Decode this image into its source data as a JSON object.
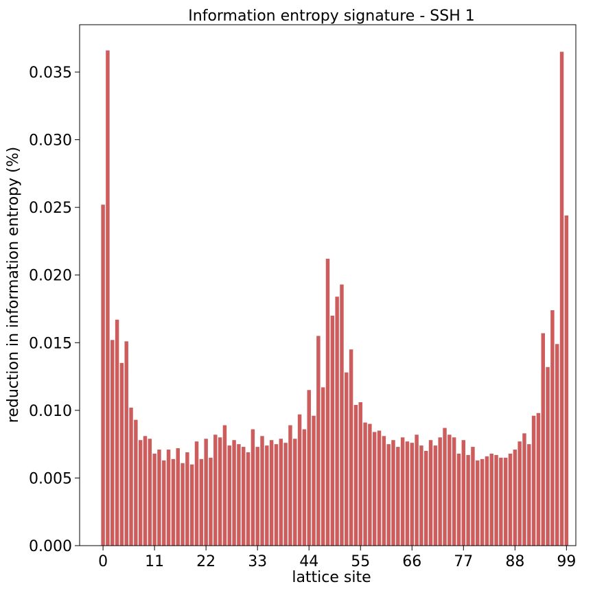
{
  "chart_data": {
    "type": "bar",
    "title": "Information entropy signature - SSH 1",
    "xlabel": "lattice site",
    "ylabel": "reduction in information entropy (%)",
    "bar_color": "#cd5c5c",
    "xlim": [
      -5,
      101
    ],
    "ylim": [
      0,
      0.0385
    ],
    "xticks": [
      0,
      11,
      22,
      33,
      44,
      55,
      66,
      77,
      88,
      99
    ],
    "xtick_labels": [
      "0",
      "11",
      "22",
      "33",
      "44",
      "55",
      "66",
      "77",
      "88",
      "99"
    ],
    "yticks": [
      0,
      0.005,
      0.01,
      0.015,
      0.02,
      0.025,
      0.03,
      0.035
    ],
    "ytick_labels": [
      "0.000",
      "0.005",
      "0.010",
      "0.015",
      "0.020",
      "0.025",
      "0.030",
      "0.035"
    ],
    "categories": [
      0,
      1,
      2,
      3,
      4,
      5,
      6,
      7,
      8,
      9,
      10,
      11,
      12,
      13,
      14,
      15,
      16,
      17,
      18,
      19,
      20,
      21,
      22,
      23,
      24,
      25,
      26,
      27,
      28,
      29,
      30,
      31,
      32,
      33,
      34,
      35,
      36,
      37,
      38,
      39,
      40,
      41,
      42,
      43,
      44,
      45,
      46,
      47,
      48,
      49,
      50,
      51,
      52,
      53,
      54,
      55,
      56,
      57,
      58,
      59,
      60,
      61,
      62,
      63,
      64,
      65,
      66,
      67,
      68,
      69,
      70,
      71,
      72,
      73,
      74,
      75,
      76,
      77,
      78,
      79,
      80,
      81,
      82,
      83,
      84,
      85,
      86,
      87,
      88,
      89,
      90,
      91,
      92,
      93,
      94,
      95,
      96,
      97,
      98,
      99
    ],
    "values": [
      0.0252,
      0.0366,
      0.0152,
      0.0167,
      0.0135,
      0.0151,
      0.0102,
      0.0093,
      0.0078,
      0.0081,
      0.0079,
      0.0068,
      0.0071,
      0.0063,
      0.0071,
      0.0064,
      0.0072,
      0.0061,
      0.0069,
      0.006,
      0.0077,
      0.0064,
      0.0079,
      0.0065,
      0.0082,
      0.008,
      0.0089,
      0.0074,
      0.0078,
      0.0075,
      0.0073,
      0.0069,
      0.0086,
      0.0073,
      0.0081,
      0.0074,
      0.0078,
      0.0075,
      0.0079,
      0.0076,
      0.0089,
      0.0079,
      0.0097,
      0.0086,
      0.0115,
      0.0096,
      0.0155,
      0.0117,
      0.0212,
      0.017,
      0.0184,
      0.0193,
      0.0128,
      0.0145,
      0.0104,
      0.0106,
      0.0091,
      0.009,
      0.0084,
      0.0085,
      0.0081,
      0.0075,
      0.0078,
      0.0073,
      0.008,
      0.0077,
      0.0076,
      0.0082,
      0.0074,
      0.007,
      0.0078,
      0.0074,
      0.008,
      0.0087,
      0.0082,
      0.008,
      0.0068,
      0.0078,
      0.0067,
      0.0073,
      0.0063,
      0.0064,
      0.0066,
      0.0068,
      0.0067,
      0.0065,
      0.0065,
      0.0068,
      0.0071,
      0.0077,
      0.0083,
      0.0075,
      0.0096,
      0.0098,
      0.0157,
      0.0132,
      0.0174,
      0.0149,
      0.0365,
      0.0244
    ]
  }
}
